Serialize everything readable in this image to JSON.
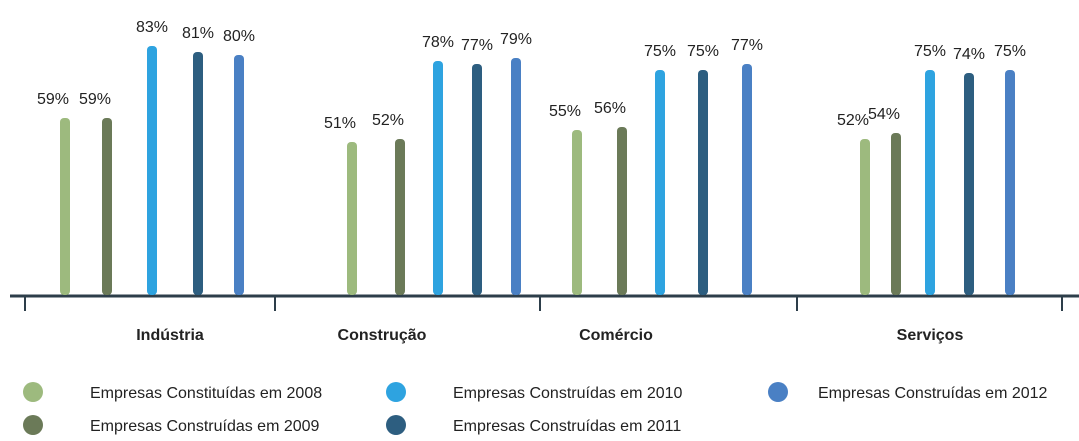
{
  "chart_data": {
    "type": "bar",
    "categories": [
      "Indústria",
      "Construção",
      "Comércio",
      "Serviços"
    ],
    "series": [
      {
        "name": "Empresas Constituídas em 2008",
        "color": "#9dba7e",
        "values": [
          59,
          51,
          55,
          52
        ],
        "value_labels": [
          "59%",
          "51%",
          "55%",
          "52%"
        ]
      },
      {
        "name": "Empresas Construídas em 2009",
        "color": "#6b7a58",
        "values": [
          59,
          52,
          56,
          54
        ],
        "value_labels": [
          "59%",
          "52%",
          "56%",
          "54%"
        ]
      },
      {
        "name": "Empresas Construídas em 2010",
        "color": "#2ea3e0",
        "values": [
          83,
          78,
          75,
          75
        ],
        "value_labels": [
          "83%",
          "78%",
          "75%",
          "75%"
        ]
      },
      {
        "name": "Empresas Construídas em 2011",
        "color": "#2d5e80",
        "values": [
          81,
          77,
          75,
          74
        ],
        "value_labels": [
          "81%",
          "77%",
          "75%",
          "74%"
        ]
      },
      {
        "name": "Empresas Construídas em 2012",
        "color": "#4a80c4",
        "values": [
          80,
          79,
          77,
          75
        ],
        "value_labels": [
          "80%",
          "79%",
          "77%",
          "75%"
        ]
      }
    ]
  }
}
